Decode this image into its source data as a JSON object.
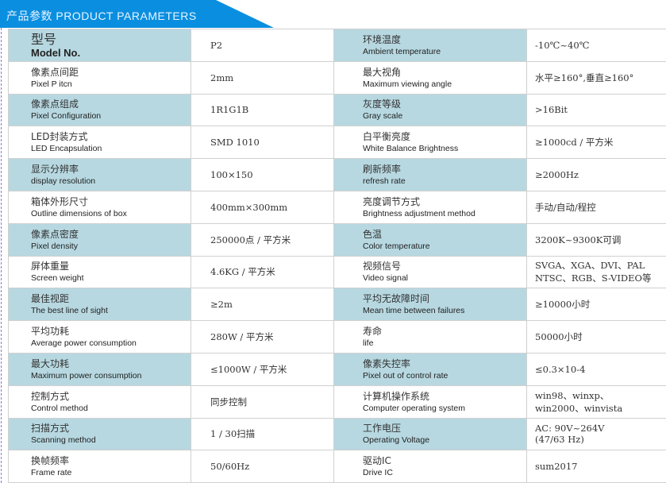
{
  "header": {
    "title": "产品参数 PRODUCT PARAMETERS"
  },
  "rows": [
    {
      "l_cn": "型号",
      "l_en": "Model No.",
      "l_val": "P2",
      "r_cn": "环境温度",
      "r_en": "Ambient temperature",
      "r_val": "-10℃~40℃"
    },
    {
      "l_cn": "像素点间距",
      "l_en": "Pixel P itcn",
      "l_val": "2mm",
      "r_cn": "最大视角",
      "r_en": "Maximum viewing angle",
      "r_val": "水平≥160°,垂直≥160°"
    },
    {
      "l_cn": "像素点组成",
      "l_en": "Pixel  Configuration",
      "l_val": "1R1G1B",
      "r_cn": "灰度等级",
      "r_en": "Gray scale",
      "r_val": ">16Bit"
    },
    {
      "l_cn": "LED封装方式",
      "l_en": "LED  Encapsulation",
      "l_val": "SMD 1010",
      "r_cn": "白平衡亮度",
      "r_en": "White Balance Brightness",
      "r_val": "≥1000cd / 平方米"
    },
    {
      "l_cn": "显示分辨率",
      "l_en": "display resolution",
      "l_val": "100×150",
      "r_cn": "刷新频率",
      "r_en": "refresh rate",
      "r_val": "≥2000Hz"
    },
    {
      "l_cn": "箱体外形尺寸",
      "l_en": "Outline dimensions of box",
      "l_val": "400mm×300mm",
      "r_cn": "亮度调节方式",
      "r_en": "Brightness adjustment method",
      "r_val": "手动/自动/程控"
    },
    {
      "l_cn": "像素点密度",
      "l_en": "Pixel density",
      "l_val": "250000点 / 平方米",
      "r_cn": "色温",
      "r_en": "Color temperature",
      "r_val": "3200K~9300K可调"
    },
    {
      "l_cn": "屏体重量",
      "l_en": "Screen weight",
      "l_val": "4.6KG / 平方米",
      "r_cn": "视频信号",
      "r_en": "Video signal",
      "r_val": "SVGA、XGA、DVI、PAL",
      "r_val2": "NTSC、RGB、S-VIDEO等"
    },
    {
      "l_cn": "最佳视距",
      "l_en": "The best line of sight",
      "l_val": "≥2m",
      "r_cn": "平均无故障时间",
      "r_en": "Mean time between failures",
      "r_val": "≥10000小时"
    },
    {
      "l_cn": "平均功耗",
      "l_en": "Average power consumption",
      "l_val": "280W / 平方米",
      "r_cn": "寿命",
      "r_en": "life",
      "r_val": "50000小时"
    },
    {
      "l_cn": "最大功耗",
      "l_en": "Maximum power consumption",
      "l_val": "≤1000W / 平方米",
      "r_cn": "像素失控率",
      "r_en": "Pixel out of control rate",
      "r_val": "≤0.3×10-4"
    },
    {
      "l_cn": "控制方式",
      "l_en": "Control method",
      "l_val": "同步控制",
      "r_cn": "计算机操作系统",
      "r_en": "Computer operating system",
      "r_val": "win98、winxp、",
      "r_val2": "win2000、winvista"
    },
    {
      "l_cn": "扫描方式",
      "l_en": "Scanning method",
      "l_val": "1 / 30扫描",
      "r_cn": "工作电压",
      "r_en": "Operating Voltage",
      "r_val": "AC: 90V~264V",
      "r_val2": "(47/63 Hz)"
    },
    {
      "l_cn": "换帧频率",
      "l_en": "Frame rate",
      "l_val": "50/60Hz",
      "r_cn": "驱动IC",
      "r_en": "Drive IC",
      "r_val": "sum2017"
    }
  ]
}
